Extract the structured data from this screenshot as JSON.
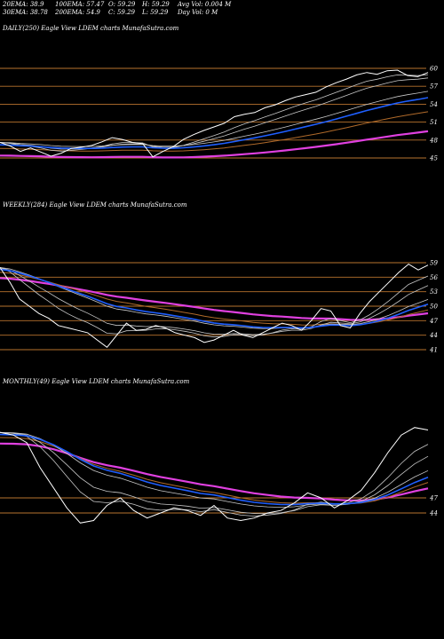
{
  "header": {
    "ema20": "20EMA: 38.9",
    "ema30": "30EMA: 38.78",
    "ema100": "100EMA: 57.47",
    "ema200": "200EMA: 54.9",
    "open": "O: 59.29",
    "close": "C: 59.29",
    "high": "H: 59.29",
    "low": "L: 59.29",
    "avg_vol": "Avg Vol: 0.004 M",
    "day_vol": "Day Vol: 0  M"
  },
  "colors": {
    "background": "#000000",
    "price": "#ffffff",
    "ema_fast": "#c8c8c8",
    "ema_blue": "#1f5fff",
    "ema_magenta": "#e040e0",
    "ema_brown": "#b06a2a",
    "level": "#b8732e"
  },
  "chart_data": [
    {
      "type": "line",
      "title": "DAILY(250) Eagle  View  LDEM charts MunafaSutra.com",
      "yticks": [
        "60",
        "57",
        "54",
        "51",
        "48",
        "45"
      ],
      "series": [
        {
          "values": [
            47.6,
            47.0,
            46.1,
            46.7,
            46.0,
            45.3,
            45.8,
            46.6,
            46.8,
            47.1,
            47.7,
            48.4,
            48.1,
            47.6,
            47.4,
            45.2,
            46.1,
            46.9,
            48.1,
            48.9,
            49.6,
            50.2,
            50.8,
            51.9,
            52.3,
            52.6,
            53.4,
            53.9,
            54.6,
            55.2,
            55.6,
            56.0,
            56.9,
            57.6,
            58.2,
            58.9,
            59.3,
            59.0,
            59.6,
            59.7,
            58.8,
            58.6,
            59.3
          ]
        }
      ]
    },
    {
      "type": "line",
      "title": "WEEKLY(284) Eagle  View  LDEM charts MunafaSutra.com",
      "yticks": [
        "59",
        "56",
        "53",
        "50",
        "47",
        "44",
        "41"
      ],
      "series": [
        {
          "values": [
            58.0,
            55.0,
            51.5,
            50.0,
            48.5,
            47.5,
            46.0,
            45.5,
            45.0,
            44.5,
            43.0,
            41.5,
            44.0,
            46.5,
            45.0,
            45.2,
            46.0,
            45.5,
            44.5,
            44.0,
            43.5,
            42.5,
            43.0,
            44.0,
            45.0,
            44.0,
            43.5,
            44.5,
            45.5,
            46.5,
            46.0,
            45.0,
            47.0,
            49.5,
            49.0,
            46.0,
            45.5,
            48.5,
            51.0,
            53.0,
            55.0,
            57.0,
            58.7,
            57.5,
            58.5
          ]
        }
      ]
    },
    {
      "type": "line",
      "title": "MONTHLY(49) Eagle  View  LDEM charts MunafaSutra.com",
      "yticks": [
        "47",
        "44"
      ],
      "series": [
        {
          "values": [
            60.0,
            59.5,
            58.0,
            53.0,
            49.0,
            45.0,
            42.0,
            42.5,
            45.5,
            47.0,
            44.5,
            43.0,
            44.0,
            45.0,
            44.5,
            43.5,
            45.5,
            43.0,
            42.5,
            43.0,
            44.0,
            44.5,
            46.0,
            48.0,
            47.0,
            45.0,
            46.5,
            48.5,
            52.0,
            56.0,
            59.5,
            61.0,
            60.5
          ]
        }
      ]
    }
  ]
}
